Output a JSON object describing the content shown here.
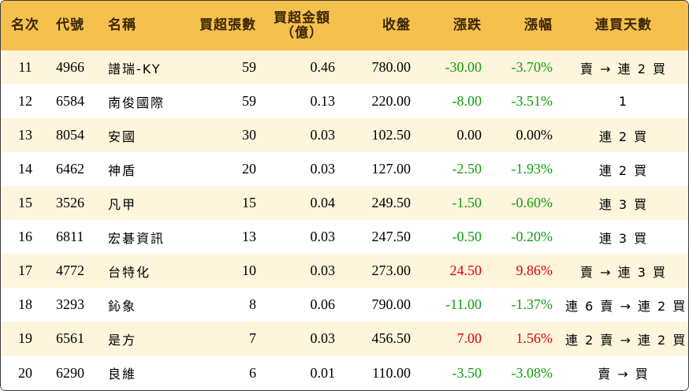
{
  "headers": {
    "rank": "名次",
    "code": "代號",
    "name": "名稱",
    "net_lots": "買超張數",
    "net_amount_line1": "買超金額",
    "net_amount_line2": "（億）",
    "close": "收盤",
    "change": "漲跌",
    "change_pct": "漲幅",
    "streak": "連買天數"
  },
  "rows": [
    {
      "rank": "11",
      "code": "4966",
      "name": "譜瑞-KY",
      "net_lots": "59",
      "net_amount": "0.46",
      "close": "780.00",
      "change": "-30.00",
      "change_pct": "-3.70%",
      "trend": "down",
      "streak": "賣 → 連 2 買"
    },
    {
      "rank": "12",
      "code": "6584",
      "name": "南俊國際",
      "net_lots": "59",
      "net_amount": "0.13",
      "close": "220.00",
      "change": "-8.00",
      "change_pct": "-3.51%",
      "trend": "down",
      "streak": "1"
    },
    {
      "rank": "13",
      "code": "8054",
      "name": "安國",
      "net_lots": "30",
      "net_amount": "0.03",
      "close": "102.50",
      "change": "0.00",
      "change_pct": "0.00%",
      "trend": "flat",
      "streak": "連 2 買"
    },
    {
      "rank": "14",
      "code": "6462",
      "name": "神盾",
      "net_lots": "20",
      "net_amount": "0.03",
      "close": "127.00",
      "change": "-2.50",
      "change_pct": "-1.93%",
      "trend": "down",
      "streak": "連 2 買"
    },
    {
      "rank": "15",
      "code": "3526",
      "name": "凡甲",
      "net_lots": "15",
      "net_amount": "0.04",
      "close": "249.50",
      "change": "-1.50",
      "change_pct": "-0.60%",
      "trend": "down",
      "streak": "連 3 買"
    },
    {
      "rank": "16",
      "code": "6811",
      "name": "宏碁資訊",
      "net_lots": "13",
      "net_amount": "0.03",
      "close": "247.50",
      "change": "-0.50",
      "change_pct": "-0.20%",
      "trend": "down",
      "streak": "連 3 買"
    },
    {
      "rank": "17",
      "code": "4772",
      "name": "台特化",
      "net_lots": "10",
      "net_amount": "0.03",
      "close": "273.00",
      "change": "24.50",
      "change_pct": "9.86%",
      "trend": "up",
      "streak": "賣 → 連 3 買"
    },
    {
      "rank": "18",
      "code": "3293",
      "name": "鈊象",
      "net_lots": "8",
      "net_amount": "0.06",
      "close": "790.00",
      "change": "-11.00",
      "change_pct": "-1.37%",
      "trend": "down",
      "streak": "連 6 賣 → 連 2 買"
    },
    {
      "rank": "19",
      "code": "6561",
      "name": "是方",
      "net_lots": "7",
      "net_amount": "0.03",
      "close": "456.50",
      "change": "7.00",
      "change_pct": "1.56%",
      "trend": "up",
      "streak": "連 2 賣 → 連 2 買"
    },
    {
      "rank": "20",
      "code": "6290",
      "name": "良維",
      "net_lots": "6",
      "net_amount": "0.01",
      "close": "110.00",
      "change": "-3.50",
      "change_pct": "-3.08%",
      "trend": "down",
      "streak": "賣 → 買"
    }
  ],
  "colors": {
    "header_bg": "#f6c04f",
    "row_alt_bg": "#fef5dd",
    "up": "#e00000",
    "down": "#129b12"
  }
}
